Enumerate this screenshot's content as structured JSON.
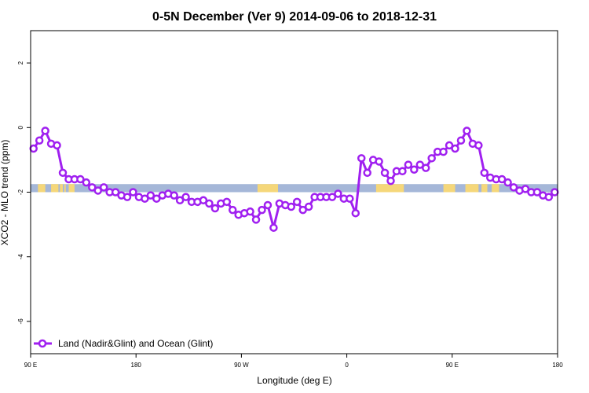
{
  "chart_data": {
    "type": "line",
    "title": "0-5N December (Ver 9)   2014-09-06 to 2018-12-31",
    "xlabel": "Longitude (deg E)",
    "ylabel": "XCO2 - MLO trend (ppm)",
    "xlim": [
      90,
      450
    ],
    "ylim": [
      -7,
      3
    ],
    "x_ticks": [
      {
        "value": 90,
        "label": "90 E"
      },
      {
        "value": 162,
        "label": "180"
      },
      {
        "value": 234,
        "label": "90 W"
      },
      {
        "value": 306,
        "label": "0"
      },
      {
        "value": 378,
        "label": "90 E"
      },
      {
        "value": 450,
        "label": "180"
      }
    ],
    "y_ticks": [
      2,
      0,
      -2,
      -4,
      -6
    ],
    "grid": false,
    "legend_position": "bottom-left",
    "series": [
      {
        "name": "Land (Nadir&Glint) and Ocean (Glint)",
        "color": "#a020f0",
        "x": [
          92,
          96,
          100,
          104,
          108,
          112,
          116,
          120,
          124,
          128,
          132,
          136,
          140,
          144,
          148,
          152,
          156,
          160,
          164,
          168,
          172,
          176,
          180,
          184,
          188,
          192,
          196,
          200,
          204,
          208,
          212,
          216,
          220,
          224,
          228,
          232,
          236,
          240,
          244,
          248,
          252,
          256,
          260,
          264,
          268,
          272,
          276,
          280,
          284,
          288,
          292,
          296,
          300,
          304,
          308,
          312,
          316,
          320,
          324,
          328,
          332,
          336,
          340,
          344,
          348,
          352,
          356,
          360,
          364,
          368,
          372,
          376,
          380,
          384,
          388,
          392,
          396,
          400,
          404,
          408,
          412,
          416,
          420,
          424,
          428,
          432,
          436,
          440,
          444,
          448
        ],
        "y": [
          -0.65,
          -0.4,
          -0.1,
          -0.5,
          -0.55,
          -1.4,
          -1.6,
          -1.6,
          -1.6,
          -1.7,
          -1.85,
          -1.95,
          -1.85,
          -2.0,
          -2.0,
          -2.1,
          -2.15,
          -2.0,
          -2.15,
          -2.2,
          -2.1,
          -2.2,
          -2.1,
          -2.05,
          -2.1,
          -2.25,
          -2.15,
          -2.3,
          -2.3,
          -2.25,
          -2.35,
          -2.5,
          -2.35,
          -2.3,
          -2.55,
          -2.7,
          -2.65,
          -2.6,
          -2.85,
          -2.55,
          -2.4,
          -3.1,
          -2.35,
          -2.4,
          -2.45,
          -2.3,
          -2.55,
          -2.45,
          -2.15,
          -2.15,
          -2.15,
          -2.15,
          -2.05,
          -2.2,
          -2.2,
          -2.65,
          -0.95,
          -1.4,
          -1.0,
          -1.05,
          -1.4,
          -1.65,
          -1.35,
          -1.35,
          -1.15,
          -1.3,
          -1.15,
          -1.25,
          -0.95,
          -0.75,
          -0.75,
          -0.55,
          -0.65,
          -0.4,
          -0.1,
          -0.5,
          -0.55,
          -1.4,
          -1.55,
          -1.6,
          -1.6,
          -1.7,
          -1.85,
          -1.95,
          -1.9,
          -2.0,
          -2.0,
          -2.1,
          -2.15,
          -2.0
        ]
      }
    ],
    "reference_band": {
      "y_range": [
        -1.75,
        -2.0
      ],
      "ocean_color": "#a5b7d8",
      "land_color": "#f5d77a",
      "land_segments": [
        [
          95,
          100
        ],
        [
          104,
          109
        ],
        [
          110,
          112
        ],
        [
          113,
          114
        ],
        [
          116,
          120
        ],
        [
          245,
          259
        ],
        [
          326,
          345
        ],
        [
          372,
          380
        ],
        [
          387,
          396
        ],
        [
          398,
          402
        ],
        [
          405,
          410
        ]
      ]
    }
  }
}
